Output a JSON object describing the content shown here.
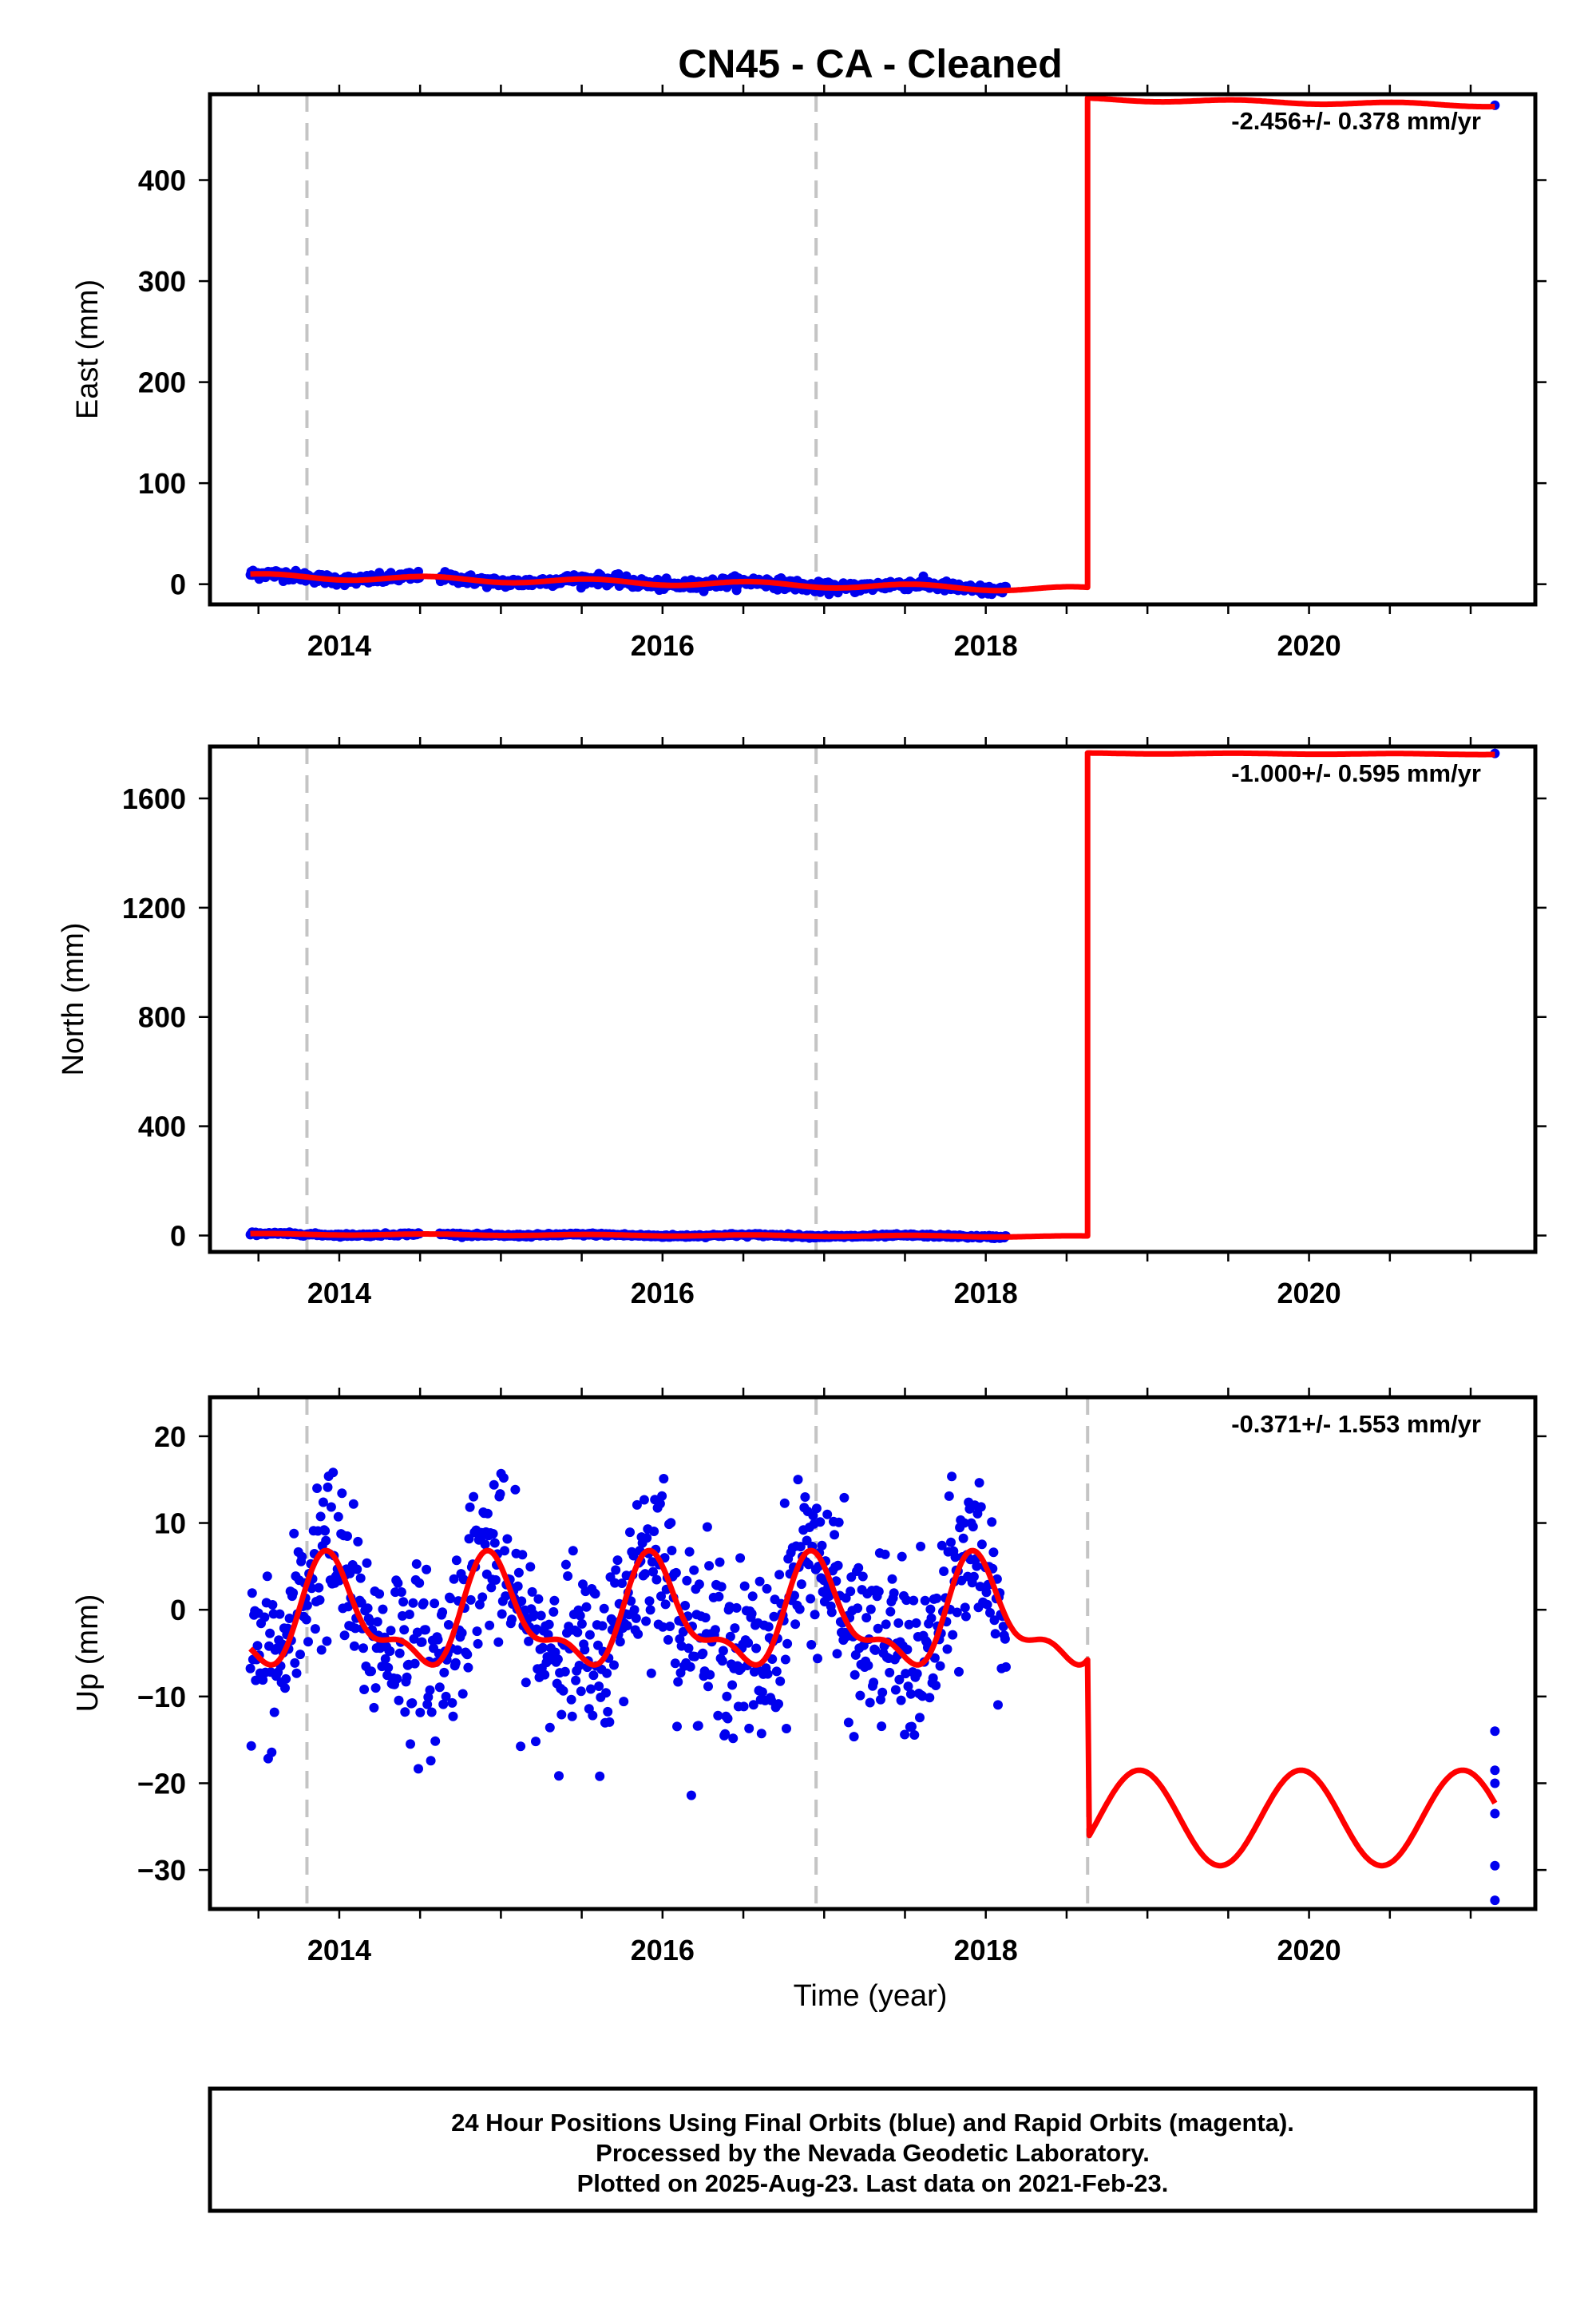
{
  "title": "CN45  - CA - Cleaned",
  "footer": {
    "lines": [
      "24 Hour Positions Using Final Orbits (blue) and Rapid Orbits (magenta).",
      "Processed by the Nevada Geodetic Laboratory.",
      "Plotted on 2025-Aug-23. Last data on 2021-Feb-23."
    ]
  },
  "x_axis_title": "Time (year)",
  "colors": {
    "observations": "#0000ee",
    "model": "#ff0000",
    "offsets": "#c4c4c4"
  },
  "chart_data": [
    {
      "type": "scatter",
      "component": "East",
      "ylabel": "East (mm)",
      "xlabel": "",
      "rate_text": "-2.456+/- 0.378 mm/yr",
      "xlim": [
        2013.2,
        2021.4
      ],
      "ylim": [
        -20,
        485
      ],
      "xticks": [
        2014,
        2016,
        2018,
        2020
      ],
      "yticks": [
        0,
        100,
        200,
        300,
        400
      ],
      "offset_epochs": [
        2013.8,
        2016.95
      ],
      "series": [
        {
          "kind": "observations",
          "x": [],
          "y": []
        },
        {
          "kind": "model",
          "x": [],
          "y": []
        }
      ],
      "observations_summary": {
        "x_start": 2013.45,
        "x_end": 2018.13,
        "y_start": 8,
        "y_end": -4,
        "scatter_mm": 2.5,
        "gap": [
          2014.5,
          2014.62
        ],
        "last_point": [
          2021.15,
          474
        ]
      },
      "step": {
        "epoch": 2018.63,
        "before": -3,
        "after": 480,
        "end_value": 474
      }
    },
    {
      "type": "scatter",
      "component": "North",
      "ylabel": "North (mm)",
      "xlabel": "",
      "rate_text": "-1.000+/- 0.595 mm/yr",
      "xlim": [
        2013.2,
        2021.4
      ],
      "ylim": [
        -60,
        1790
      ],
      "xticks": [
        2014,
        2016,
        2018,
        2020
      ],
      "yticks": [
        0,
        400,
        800,
        1200,
        1600
      ],
      "offset_epochs": [
        2013.8,
        2016.95
      ],
      "series": [
        {
          "kind": "observations",
          "x": [],
          "y": []
        },
        {
          "kind": "model",
          "x": [],
          "y": []
        }
      ],
      "observations_summary": {
        "x_start": 2013.45,
        "x_end": 2018.13,
        "y_start": 5,
        "y_end": -3,
        "scatter_mm": 2.5,
        "gap": [
          2014.5,
          2014.62
        ],
        "last_point": [
          2021.15,
          1765
        ]
      },
      "step": {
        "epoch": 2018.63,
        "before": -3,
        "after": 1765,
        "end_value": 1762
      }
    },
    {
      "type": "scatter",
      "component": "Up",
      "ylabel": "Up (mm)",
      "xlabel": "Time (year)",
      "rate_text": "-0.371+/- 1.553 mm/yr",
      "xlim": [
        2013.2,
        2021.4
      ],
      "ylim": [
        -34.5,
        24.5
      ],
      "xticks": [
        2014,
        2016,
        2018,
        2020
      ],
      "yticks": [
        -30,
        -20,
        -10,
        0,
        10,
        20
      ],
      "offset_epochs": [
        2013.8,
        2016.95,
        2018.63
      ],
      "series": [
        {
          "kind": "observations",
          "x": [],
          "y": []
        },
        {
          "kind": "model",
          "x": [],
          "y": []
        }
      ],
      "observations_summary": {
        "x_start": 2013.45,
        "x_end": 2018.13,
        "scatter_mm": 5,
        "last_points_x": 2021.15,
        "last_points_y": [
          -14,
          -18.5,
          -20,
          -23.5,
          -29.5,
          -33.5
        ]
      },
      "seasonal": {
        "mean_before": -1,
        "amplitude_before": 5.5,
        "mean_after": -24,
        "amplitude_after": 5.5,
        "peak_phase": 0.95
      }
    }
  ]
}
